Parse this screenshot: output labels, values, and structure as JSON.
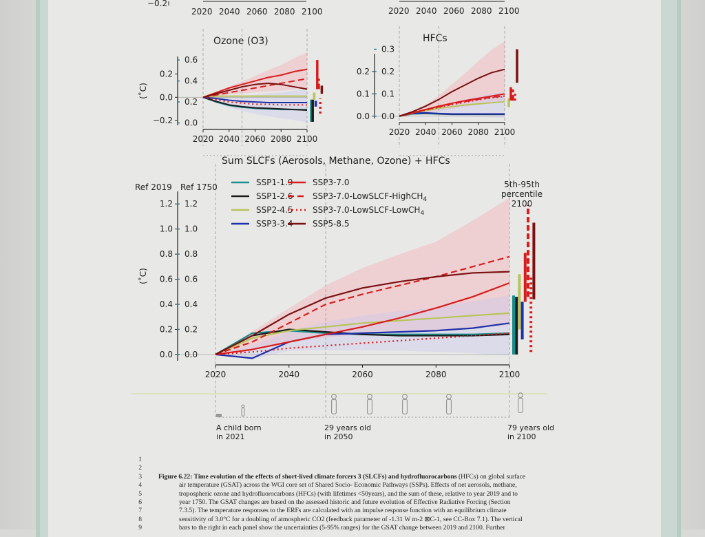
{
  "colors": {
    "SSP1-1.9": "#1a8c8c",
    "SSP1-2.6": "#1c1c1c",
    "SSP2-4.5": "#b8c45a",
    "SSP3-3.4": "#2030a8",
    "SSP3-7.0": "#d81c1c",
    "SSP3-7.0-LowSLCF-HighCH4": "#d81c1c",
    "SSP3-7.0-LowSLCF-LowCH4": "#d81c1c",
    "SSP5-8.5": "#7a1010",
    "ref1750": "#2a7f9a",
    "band_red": "#f3b7bd",
    "band_blue": "#c8c8ee"
  },
  "top_partial": {
    "left_y_label": "−0.2",
    "xticks": [
      "2020",
      "2040",
      "2060",
      "2080",
      "2100"
    ]
  },
  "chart_data": [
    {
      "type": "line",
      "title": "Ozone (O3)",
      "title_text": "Ozone (O",
      "title_sub": "3",
      "title_end": ")",
      "ylabel": "(˚C)",
      "x": [
        2020,
        2030,
        2040,
        2050,
        2060,
        2070,
        2080,
        2090,
        2100
      ],
      "xlim": [
        2020,
        2100
      ],
      "ylim": [
        -0.24,
        0.35
      ],
      "yticks": [
        -0.2,
        0.0,
        0.2
      ],
      "ytick_labels": [
        "−0.2",
        "0.0",
        "0.2"
      ],
      "yticks_1750": [
        "0.0",
        "0.2",
        "0.4",
        "0.6"
      ],
      "xtick_labels": [
        "2020",
        "2040",
        "2060",
        "2080",
        "2100"
      ],
      "series": [
        {
          "name": "SSP1-1.9",
          "style": "solid",
          "values": [
            0,
            -0.04,
            -0.07,
            -0.085,
            -0.095,
            -0.1,
            -0.105,
            -0.105,
            -0.105
          ]
        },
        {
          "name": "SSP1-2.6",
          "style": "solid",
          "values": [
            0,
            -0.035,
            -0.065,
            -0.08,
            -0.09,
            -0.095,
            -0.1,
            -0.105,
            -0.11
          ]
        },
        {
          "name": "SSP2-4.5",
          "style": "solid",
          "values": [
            0,
            0.01,
            0.01,
            0.01,
            0.01,
            0.01,
            0.01,
            0.01,
            0.01
          ]
        },
        {
          "name": "SSP3-3.4",
          "style": "solid",
          "values": [
            0,
            -0.01,
            -0.025,
            -0.035,
            -0.04,
            -0.045,
            -0.045,
            -0.045,
            -0.045
          ]
        },
        {
          "name": "SSP3-7.0",
          "style": "solid",
          "values": [
            0,
            0.04,
            0.08,
            0.11,
            0.14,
            0.17,
            0.19,
            0.22,
            0.24
          ]
        },
        {
          "name": "SSP3-7.0-LowSLCF-HighCH4",
          "style": "dashed",
          "values": [
            0,
            0.02,
            0.04,
            0.06,
            0.08,
            0.1,
            0.12,
            0.14,
            0.16
          ]
        },
        {
          "name": "SSP3-7.0-LowSLCF-LowCH4",
          "style": "dotted",
          "values": [
            0,
            -0.02,
            -0.04,
            -0.05,
            -0.06,
            -0.06,
            -0.065,
            -0.065,
            -0.065
          ]
        },
        {
          "name": "SSP5-8.5",
          "style": "solid",
          "values": [
            0,
            0.03,
            0.06,
            0.09,
            0.11,
            0.12,
            0.11,
            0.09,
            0.07
          ]
        }
      ],
      "uncertainty_2100": [
        {
          "name": "SSP1-1.9",
          "low": -0.21,
          "high": -0.02
        },
        {
          "name": "SSP1-2.6",
          "low": -0.21,
          "high": -0.02
        },
        {
          "name": "SSP2-4.5",
          "low": -0.02,
          "high": 0.04
        },
        {
          "name": "SSP3-3.4",
          "low": -0.08,
          "high": -0.03
        },
        {
          "name": "SSP3-7.0",
          "low": 0.07,
          "high": 0.32
        },
        {
          "name": "SSP3-7.0-LowSLCF-HighCH4",
          "low": 0.07,
          "high": 0.16
        },
        {
          "name": "SSP3-7.0-LowSLCF-LowCH4",
          "low": -0.14,
          "high": -0.01
        },
        {
          "name": "SSP5-8.5",
          "low": 0.03,
          "high": 0.1
        }
      ]
    },
    {
      "type": "line",
      "title": "HFCs",
      "title_text": "HFCs",
      "title_sub": "",
      "title_end": "",
      "ylabel": "",
      "x": [
        2020,
        2030,
        2040,
        2050,
        2060,
        2070,
        2080,
        2090,
        2100
      ],
      "xlim": [
        2020,
        2100
      ],
      "ylim": [
        -0.01,
        0.28
      ],
      "yticks": [
        0.0,
        0.1,
        0.2
      ],
      "ytick_labels": [
        "0.0",
        "0.1",
        "0.2"
      ],
      "yticks_1750": [
        "0.0",
        "0.1",
        "0.2",
        "0.3"
      ],
      "xtick_labels": [
        "2020",
        "2040",
        "2060",
        "2080",
        "2100"
      ],
      "series": [
        {
          "name": "SSP1-1.9",
          "style": "solid",
          "values": [
            0,
            0.01,
            0.012,
            0.01,
            0.008,
            0.008,
            0.008,
            0.008,
            0.008
          ]
        },
        {
          "name": "SSP1-2.6",
          "style": "solid",
          "values": [
            0,
            0.012,
            0.014,
            0.011,
            0.009,
            0.009,
            0.009,
            0.009,
            0.009
          ]
        },
        {
          "name": "SSP2-4.5",
          "style": "solid",
          "values": [
            0,
            0.012,
            0.025,
            0.035,
            0.043,
            0.05,
            0.055,
            0.06,
            0.065
          ]
        },
        {
          "name": "SSP3-3.4",
          "style": "solid",
          "values": [
            0,
            0.013,
            0.015,
            0.012,
            0.01,
            0.01,
            0.01,
            0.01,
            0.01
          ]
        },
        {
          "name": "SSP3-7.0",
          "style": "solid",
          "values": [
            0,
            0.015,
            0.03,
            0.045,
            0.058,
            0.07,
            0.08,
            0.09,
            0.1
          ]
        },
        {
          "name": "SSP3-7.0-LowSLCF-HighCH4",
          "style": "dashed",
          "values": [
            0,
            0.014,
            0.028,
            0.042,
            0.055,
            0.066,
            0.076,
            0.085,
            0.09
          ]
        },
        {
          "name": "SSP3-7.0-LowSLCF-LowCH4",
          "style": "dotted",
          "values": [
            0,
            0.014,
            0.027,
            0.04,
            0.052,
            0.063,
            0.073,
            0.082,
            0.088
          ]
        },
        {
          "name": "SSP5-8.5",
          "style": "solid",
          "values": [
            0,
            0.02,
            0.045,
            0.075,
            0.11,
            0.14,
            0.17,
            0.195,
            0.21
          ]
        }
      ],
      "uncertainty_2100": [
        {
          "name": "SSP2-4.5",
          "low": 0.04,
          "high": 0.08
        },
        {
          "name": "SSP3-7.0",
          "low": 0.07,
          "high": 0.13
        },
        {
          "name": "SSP3-7.0-LowSLCF-HighCH4",
          "low": 0.07,
          "high": 0.12
        },
        {
          "name": "SSP3-7.0-LowSLCF-LowCH4",
          "low": 0.07,
          "high": 0.11
        },
        {
          "name": "SSP5-8.5",
          "low": 0.15,
          "high": 0.3
        }
      ]
    },
    {
      "type": "line",
      "title": "Sum SLCFs (Aerosols, Methane, Ozone) + HFCs",
      "ylabel": "(˚C)",
      "ref_2019_label": "Ref 2019",
      "ref_1750_label": "Ref 1750",
      "x": [
        2020,
        2030,
        2040,
        2050,
        2060,
        2070,
        2080,
        2090,
        2100
      ],
      "xlim": [
        2020,
        2100
      ],
      "ylim": [
        -0.05,
        1.3
      ],
      "yticks": [
        0.0,
        0.2,
        0.4,
        0.6,
        0.8,
        1.0,
        1.2
      ],
      "ytick_labels": [
        "0.0",
        "0.2",
        "0.4",
        "0.6",
        "0.8",
        "1.0",
        "1.2"
      ],
      "yticks_1750": [
        "0.0",
        "0.2",
        "0.4",
        "0.6",
        "0.8",
        "1.0",
        "1.2"
      ],
      "xtick_labels": [
        "2020",
        "2040",
        "2060",
        "2080",
        "2100"
      ],
      "percentile_label": [
        "5th-95th",
        "percentile",
        "2100"
      ],
      "legend": {
        "placement": "top-left",
        "entries": [
          {
            "name": "SSP1-1.9",
            "style": "solid"
          },
          {
            "name": "SSP1-2.6",
            "style": "solid"
          },
          {
            "name": "SSP2-4.5",
            "style": "solid"
          },
          {
            "name": "SSP3-3.4",
            "style": "solid"
          },
          {
            "name": "SSP3-7.0",
            "style": "solid"
          },
          {
            "name": "SSP3-7.0-LowSLCF-HighCH4",
            "label": "SSP3-7.0-LowSLCF-HighCH",
            "sub": "4",
            "style": "dashed"
          },
          {
            "name": "SSP3-7.0-LowSLCF-LowCH4",
            "label": "SSP3-7.0-LowSLCF-LowCH",
            "sub": "4",
            "style": "dotted"
          },
          {
            "name": "SSP5-8.5",
            "style": "solid"
          }
        ]
      },
      "series": [
        {
          "name": "SSP1-1.9",
          "style": "solid",
          "values": [
            0,
            0.17,
            0.19,
            0.17,
            0.16,
            0.16,
            0.16,
            0.16,
            0.17
          ]
        },
        {
          "name": "SSP1-2.6",
          "style": "solid",
          "values": [
            0,
            0.15,
            0.2,
            0.18,
            0.16,
            0.15,
            0.15,
            0.15,
            0.16
          ]
        },
        {
          "name": "SSP2-4.5",
          "style": "solid",
          "values": [
            0,
            0.13,
            0.19,
            0.22,
            0.25,
            0.27,
            0.29,
            0.31,
            0.33
          ]
        },
        {
          "name": "SSP3-3.4",
          "style": "solid",
          "values": [
            0,
            -0.03,
            0.1,
            0.16,
            0.17,
            0.18,
            0.19,
            0.21,
            0.25
          ]
        },
        {
          "name": "SSP3-7.0",
          "style": "solid",
          "values": [
            0,
            0.04,
            0.1,
            0.16,
            0.22,
            0.29,
            0.37,
            0.46,
            0.57
          ]
        },
        {
          "name": "SSP3-7.0-LowSLCF-HighCH4",
          "style": "dashed",
          "values": [
            0,
            0.1,
            0.25,
            0.4,
            0.48,
            0.55,
            0.62,
            0.7,
            0.78
          ]
        },
        {
          "name": "SSP3-7.0-LowSLCF-LowCH4",
          "style": "dotted",
          "values": [
            0,
            0.02,
            0.05,
            0.07,
            0.09,
            0.11,
            0.13,
            0.15,
            0.17
          ]
        },
        {
          "name": "SSP5-8.5",
          "style": "solid",
          "values": [
            0,
            0.15,
            0.32,
            0.45,
            0.53,
            0.58,
            0.62,
            0.65,
            0.66
          ]
        }
      ],
      "uncertainty_2100": [
        {
          "name": "SSP1-1.9",
          "low": 0.0,
          "high": 0.47
        },
        {
          "name": "SSP1-2.6",
          "low": 0.0,
          "high": 0.46
        },
        {
          "name": "SSP2-4.5",
          "low": 0.2,
          "high": 0.64
        },
        {
          "name": "SSP3-3.4",
          "low": 0.12,
          "high": 0.42
        },
        {
          "name": "SSP3-7.0",
          "low": 0.42,
          "high": 0.81
        },
        {
          "name": "SSP3-7.0-LowSLCF-HighCH4",
          "low": 0.46,
          "high": 1.19
        },
        {
          "name": "SSP3-7.0-LowSLCF-LowCH4",
          "low": 0.02,
          "high": 0.62
        },
        {
          "name": "SSP5-8.5",
          "low": 0.44,
          "high": 1.05
        }
      ]
    }
  ],
  "timeline": [
    {
      "title": "A child born",
      "sub": "in 2021"
    },
    {
      "title": "29 years old",
      "sub": "in 2050"
    },
    {
      "title": "79 years old",
      "sub": "in 2100"
    }
  ],
  "caption": {
    "line_numbers": [
      "1",
      "2",
      "3",
      "4",
      "5",
      "6",
      "7",
      "8",
      "9"
    ],
    "lead_bold": "Figure 6.22: Time evolution of the effects of short-lived climate forcers 3 (SLCFs) and hydrofluorocarbons",
    "lead_rest": " (HFCs) on global surface",
    "lines": [
      "air temperature (GSAT) across the WGI core set of Shared Socio- Economic Pathways (SSPs). Effects of net aerosols, methane,",
      "tropospheric ozone and hydrofluorocarbons (HFCs) (with lifetimes <50years), and the sum of these, relative to year 2019 and to",
      "year 1750. The GSAT changes are based on the assessed historic and future evolution of Effective Radiative Forcing (Section",
      "7.3.5). The temperature responses to the ERFs are calculated with an impulse response function with an equilibrium climate",
      "sensitivity of 3.0°C for a doubling of atmospheric CO2 (feedback parameter of -1.31 W m-2 ⊠C-1, see CC-Box 7.1). The vertical",
      "bars to the right in each panel show the uncertainties (5-95% ranges) for the GSAT change between 2019 and 2100. Further"
    ]
  }
}
